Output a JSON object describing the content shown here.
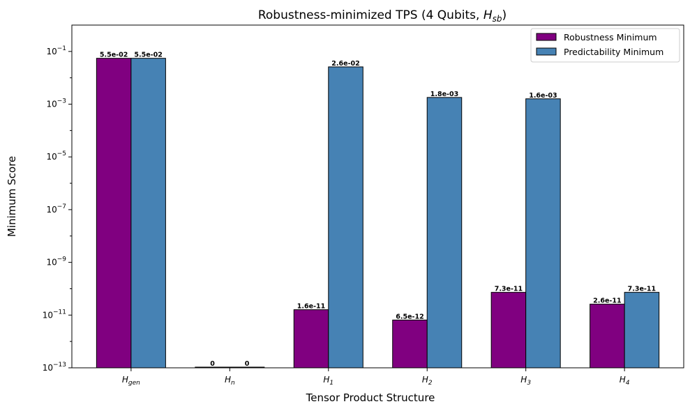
{
  "chart_data": {
    "type": "bar",
    "title_main": "Robustness-minimized TPS (4 Qubits, ",
    "title_var": "H",
    "title_sub": "sb",
    "title_close": ")",
    "xlabel": "Tensor Product Structure",
    "ylabel": "Minimum Score",
    "yscale": "log",
    "ylim_exp": [
      -13,
      0
    ],
    "yticks": [
      {
        "base": "10",
        "exp": "−1",
        "value_exp": -1
      },
      {
        "base": "10",
        "exp": "−3",
        "value_exp": -3
      },
      {
        "base": "10",
        "exp": "−5",
        "value_exp": -5
      },
      {
        "base": "10",
        "exp": "−7",
        "value_exp": -7
      },
      {
        "base": "10",
        "exp": "−9",
        "value_exp": -9
      },
      {
        "base": "10",
        "exp": "−11",
        "value_exp": -11
      },
      {
        "base": "10",
        "exp": "−13",
        "value_exp": -13
      }
    ],
    "categories": [
      {
        "main": "H",
        "sub": "gen"
      },
      {
        "main": "H",
        "sub": "n"
      },
      {
        "main": "H",
        "sub": "1"
      },
      {
        "main": "H",
        "sub": "2"
      },
      {
        "main": "H",
        "sub": "3"
      },
      {
        "main": "H",
        "sub": "4"
      }
    ],
    "series": [
      {
        "name": "Robustness Minimum",
        "color": "#800080",
        "values": [
          0.055,
          0,
          1.6e-11,
          6.5e-12,
          7.3e-11,
          2.6e-11
        ],
        "labels": [
          "5.5e-02",
          "0",
          "1.6e-11",
          "6.5e-12",
          "7.3e-11",
          "2.6e-11"
        ]
      },
      {
        "name": "Predictability Minimum",
        "color": "#4682b4",
        "values": [
          0.055,
          0,
          0.026,
          0.0018,
          0.0016,
          7.3e-11
        ],
        "labels": [
          "5.5e-02",
          "0",
          "2.6e-02",
          "1.8e-03",
          "1.6e-03",
          "7.3e-11"
        ]
      }
    ],
    "legend_position": "top-right",
    "grid": false
  }
}
